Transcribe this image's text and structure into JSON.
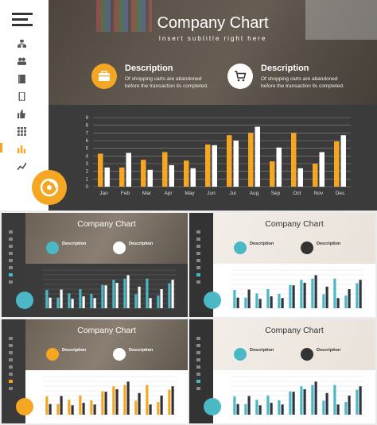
{
  "main": {
    "title": "Company Chart",
    "subtitle": "Insert subtitle right here",
    "cards": [
      {
        "title": "Description",
        "text_line1": "Of shopping carts are abandoned",
        "text_line2": "before the transaction its completed.",
        "icon": "briefcase-icon",
        "icon_bg": "#f5a623"
      },
      {
        "title": "Description",
        "text_line1": "Of shopping carts are abandoned",
        "text_line2": "before the transaction its completed.",
        "icon": "cart-icon",
        "icon_bg": "#ffffff"
      }
    ],
    "nav_icons": [
      "hierarchy-icon",
      "users-icon",
      "book-icon",
      "phone-icon",
      "thumbs-up-icon",
      "grid-icon",
      "bar-chart-icon",
      "line-chart-icon"
    ],
    "nav_active_index": 6,
    "accent": "#f5a623"
  },
  "chart_data": {
    "type": "bar",
    "categories": [
      "Jan",
      "Feb",
      "Mar",
      "Apr",
      "May",
      "Jun",
      "Jul",
      "Aug",
      "Sep",
      "Oct",
      "Nov",
      "Des"
    ],
    "series": [
      {
        "values": [
          4.3,
          2.5,
          3.5,
          4.5,
          3.4,
          5.5,
          6.7,
          7.0,
          3.3,
          7.0,
          3.0,
          5.9
        ]
      },
      {
        "values": [
          2.5,
          4.4,
          2.2,
          2.8,
          2.4,
          5.4,
          6.0,
          7.8,
          5.1,
          2.4,
          4.5,
          6.7
        ]
      }
    ],
    "ylim": [
      0,
      9
    ],
    "yticks": [
      0,
      1,
      2,
      3,
      4,
      5,
      6,
      7,
      8,
      9
    ],
    "colors": [
      "#f5a623",
      "#ffffff"
    ],
    "grid": true
  },
  "thumbnails": [
    {
      "title": "Company Chart",
      "theme": "dark",
      "accent": "#4bb8c6",
      "card_title": "Description",
      "card_text": "Of shopping carts are abandoned before the transaction its completed."
    },
    {
      "title": "Company Chart",
      "theme": "light",
      "accent": "#4bb8c6",
      "card_title": "Description",
      "card_text": "Of shopping carts are abandoned before the transaction its completed."
    },
    {
      "title": "Company Chart",
      "theme": "dark-side",
      "accent": "#f5a623",
      "card_title": "Description",
      "card_text": "Of shopping carts are abandoned before the transaction its completed."
    },
    {
      "title": "Company Chart",
      "theme": "light",
      "accent": "#4bb8c6",
      "card_title": "Description",
      "card_text": "Of shopping carts are abandoned before the transaction its completed."
    }
  ]
}
